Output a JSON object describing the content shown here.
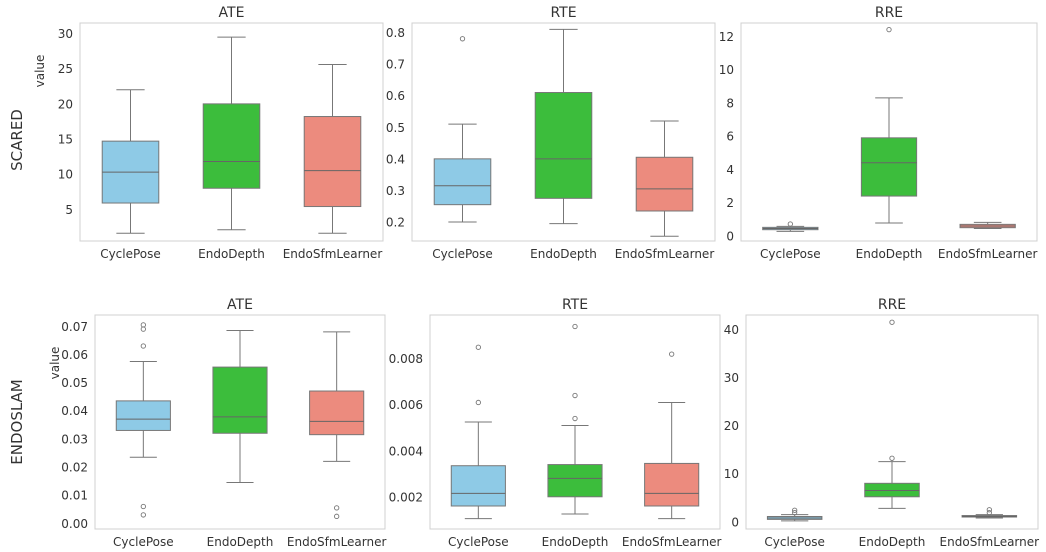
{
  "row_labels": [
    "SCARED",
    "ENDOSLAM"
  ],
  "y_label": "value",
  "colors": {
    "CyclePose": "#8ecae6",
    "EndoDepth": "#3cbd3c",
    "EndoSfmLearner": "#ec8b7e"
  },
  "chart_data": [
    {
      "type": "box",
      "title": "ATE",
      "row": "SCARED",
      "categories": [
        "CyclePose",
        "EndoDepth",
        "EndoSfmLearner"
      ],
      "yticks": [
        5,
        10,
        15,
        20,
        25,
        30
      ],
      "ylim": [
        0.5,
        31.5
      ],
      "ylabel": "value",
      "grid": false,
      "boxes": [
        {
          "min": 1.6,
          "q1": 5.9,
          "median": 10.3,
          "q3": 14.7,
          "max": 22.0,
          "outliers": []
        },
        {
          "min": 2.1,
          "q1": 8.0,
          "median": 11.8,
          "q3": 20.0,
          "max": 29.5,
          "outliers": []
        },
        {
          "min": 1.6,
          "q1": 5.4,
          "median": 10.5,
          "q3": 18.2,
          "max": 25.6,
          "outliers": []
        }
      ]
    },
    {
      "type": "box",
      "title": "RTE",
      "row": "SCARED",
      "categories": [
        "CyclePose",
        "EndoDepth",
        "EndoSfmLearner"
      ],
      "yticks": [
        0.2,
        0.3,
        0.4,
        0.5,
        0.6,
        0.7,
        0.8
      ],
      "ylim": [
        0.14,
        0.83
      ],
      "ylabel": "",
      "grid": false,
      "boxes": [
        {
          "min": 0.2,
          "q1": 0.255,
          "median": 0.315,
          "q3": 0.4,
          "max": 0.51,
          "outliers": [
            0.78
          ]
        },
        {
          "min": 0.195,
          "q1": 0.275,
          "median": 0.4,
          "q3": 0.61,
          "max": 0.81,
          "outliers": []
        },
        {
          "min": 0.155,
          "q1": 0.235,
          "median": 0.305,
          "q3": 0.405,
          "max": 0.52,
          "outliers": []
        }
      ]
    },
    {
      "type": "box",
      "title": "RRE",
      "row": "SCARED",
      "categories": [
        "CyclePose",
        "EndoDepth",
        "EndoSfmLearner"
      ],
      "yticks": [
        0,
        2,
        4,
        6,
        8,
        10,
        12
      ],
      "ylim": [
        -0.3,
        12.8
      ],
      "ylabel": "",
      "grid": false,
      "boxes": [
        {
          "min": 0.28,
          "q1": 0.38,
          "median": 0.45,
          "q3": 0.52,
          "max": 0.58,
          "outliers": [
            0.72
          ]
        },
        {
          "min": 0.78,
          "q1": 2.4,
          "median": 4.4,
          "q3": 5.9,
          "max": 8.3,
          "outliers": [
            12.4
          ]
        },
        {
          "min": 0.45,
          "q1": 0.5,
          "median": 0.6,
          "q3": 0.7,
          "max": 0.82,
          "outliers": []
        }
      ]
    },
    {
      "type": "box",
      "title": "ATE",
      "row": "ENDOSLAM",
      "categories": [
        "CyclePose",
        "EndoDepth",
        "EndoSfmLearner"
      ],
      "yticks": [
        0.0,
        0.01,
        0.02,
        0.03,
        0.04,
        0.05,
        0.06,
        0.07
      ],
      "ytick_labels": [
        "0.00",
        "0.01",
        "0.02",
        "0.03",
        "0.04",
        "0.05",
        "0.06",
        "0.07"
      ],
      "ylim": [
        -0.002,
        0.074
      ],
      "ylabel": "value",
      "grid": false,
      "boxes": [
        {
          "min": 0.0235,
          "q1": 0.033,
          "median": 0.037,
          "q3": 0.0435,
          "max": 0.0575,
          "outliers": [
            0.0705,
            0.069,
            0.063,
            0.006,
            0.003
          ]
        },
        {
          "min": 0.0145,
          "q1": 0.032,
          "median": 0.0378,
          "q3": 0.0555,
          "max": 0.0685,
          "outliers": []
        },
        {
          "min": 0.022,
          "q1": 0.0315,
          "median": 0.0362,
          "q3": 0.047,
          "max": 0.068,
          "outliers": [
            0.0055,
            0.0025
          ]
        }
      ]
    },
    {
      "type": "box",
      "title": "RTE",
      "row": "ENDOSLAM",
      "categories": [
        "CyclePose",
        "EndoDepth",
        "EndoSfmLearner"
      ],
      "yticks": [
        0.002,
        0.004,
        0.006,
        0.008
      ],
      "ytick_labels": [
        "0.002",
        "0.004",
        "0.006",
        "0.008"
      ],
      "ylim": [
        0.0006,
        0.0099
      ],
      "ylabel": "",
      "grid": false,
      "boxes": [
        {
          "min": 0.00105,
          "q1": 0.0016,
          "median": 0.00215,
          "q3": 0.00335,
          "max": 0.00525,
          "outliers": [
            0.0061,
            0.0085
          ]
        },
        {
          "min": 0.00125,
          "q1": 0.002,
          "median": 0.0028,
          "q3": 0.0034,
          "max": 0.0051,
          "outliers": [
            0.0054,
            0.0064,
            0.0094
          ]
        },
        {
          "min": 0.00105,
          "q1": 0.0016,
          "median": 0.00215,
          "q3": 0.00345,
          "max": 0.0061,
          "outliers": [
            0.0082
          ]
        }
      ]
    },
    {
      "type": "box",
      "title": "RRE",
      "row": "ENDOSLAM",
      "categories": [
        "CyclePose",
        "EndoDepth",
        "EndoSfmLearner"
      ],
      "yticks": [
        0,
        10,
        20,
        30,
        40
      ],
      "ylim": [
        -1.5,
        43
      ],
      "ylabel": "",
      "grid": false,
      "boxes": [
        {
          "min": 0.2,
          "q1": 0.5,
          "median": 0.8,
          "q3": 1.1,
          "max": 1.5,
          "outliers": [
            1.9,
            2.4
          ]
        },
        {
          "min": 2.8,
          "q1": 5.2,
          "median": 6.5,
          "q3": 8.0,
          "max": 12.5,
          "outliers": [
            13.2,
            41.5
          ]
        },
        {
          "min": 0.8,
          "q1": 1.0,
          "median": 1.1,
          "q3": 1.3,
          "max": 1.5,
          "outliers": [
            1.9,
            2.5
          ]
        }
      ]
    }
  ]
}
